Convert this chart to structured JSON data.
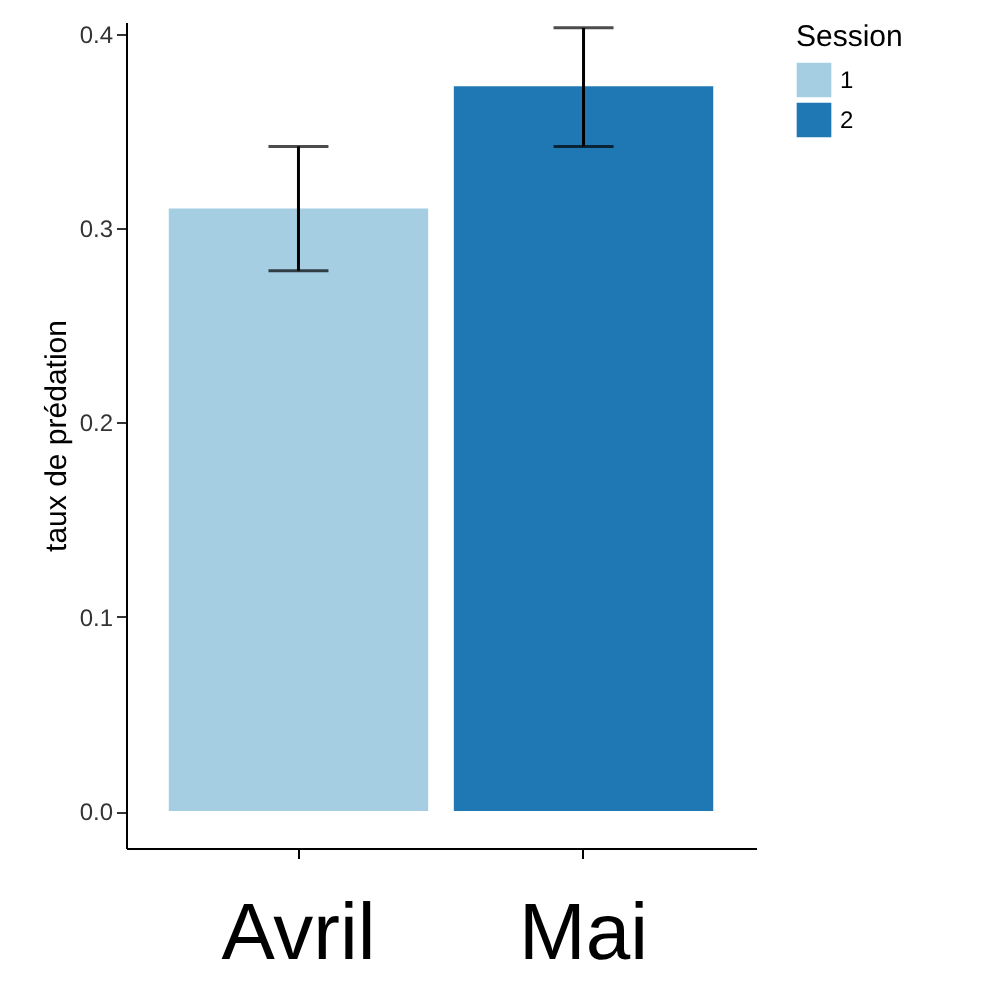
{
  "chart_data": {
    "type": "bar",
    "categories": [
      "Avril",
      "Mai"
    ],
    "ylabel": "taux de prédation",
    "legend_title": "Session",
    "legend": "right",
    "grid": false,
    "ylim": [
      -0.019,
      0.406
    ],
    "yticks": [
      {
        "value": 0,
        "label": "0.0"
      },
      0.1,
      0.2,
      0.3,
      0.4
    ],
    "series": [
      {
        "name": "1",
        "color": "#a6cee3",
        "values": [
          0.31,
          null
        ],
        "errors": [
          [
            0.278,
            0.342
          ],
          null
        ]
      },
      {
        "name": "2",
        "color": "#1f78b4",
        "values": [
          null,
          0.373
        ],
        "errors": [
          null,
          [
            0.342,
            0.403
          ]
        ]
      }
    ]
  }
}
